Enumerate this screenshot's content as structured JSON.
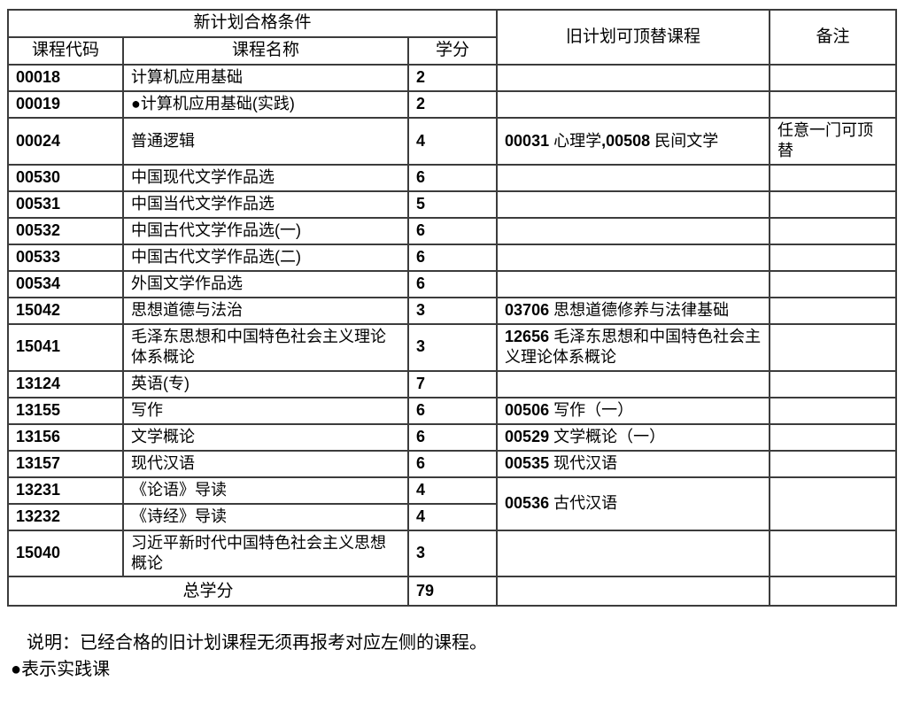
{
  "table": {
    "header": {
      "new_plan_title": "新计划合格条件",
      "col_code": "课程代码",
      "col_name": "课程名称",
      "col_credits": "学分",
      "old_plan_title": "旧计划可顶替课程",
      "remark_title": "备注"
    },
    "rows": [
      {
        "code": "00018",
        "name": "计算机应用基础",
        "credits": "2",
        "old_plan": [],
        "remark": ""
      },
      {
        "code": "00019",
        "name": "●计算机应用基础(实践)",
        "credits": "2",
        "old_plan": [],
        "remark": ""
      },
      {
        "code": "00024",
        "name": "普通逻辑",
        "credits": "4",
        "old_plan": [
          {
            "code": "00031",
            "name": "心理学"
          },
          {
            "code": "00508",
            "name": "民间文学"
          }
        ],
        "separator": ",",
        "remark": "任意一门可顶替"
      },
      {
        "code": "00530",
        "name": "中国现代文学作品选",
        "credits": "6",
        "old_plan": [],
        "remark": ""
      },
      {
        "code": "00531",
        "name": "中国当代文学作品选",
        "credits": "5",
        "old_plan": [],
        "remark": ""
      },
      {
        "code": "00532",
        "name": "中国古代文学作品选(一)",
        "credits": "6",
        "old_plan": [],
        "remark": ""
      },
      {
        "code": "00533",
        "name": "中国古代文学作品选(二)",
        "credits": "6",
        "old_plan": [],
        "remark": ""
      },
      {
        "code": "00534",
        "name": "外国文学作品选",
        "credits": "6",
        "old_plan": [],
        "remark": ""
      },
      {
        "code": "15042",
        "name": "思想道德与法治",
        "credits": "3",
        "old_plan": [
          {
            "code": "03706",
            "name": "思想道德修养与法律基础"
          }
        ],
        "remark": ""
      },
      {
        "code": "15041",
        "name": "毛泽东思想和中国特色社会主义理论体系概论",
        "credits": "3",
        "old_plan": [
          {
            "code": "12656",
            "name": "毛泽东思想和中国特色社会主义理论体系概论"
          }
        ],
        "remark": ""
      },
      {
        "code": "13124",
        "name": "英语(专)",
        "credits": "7",
        "old_plan": [],
        "remark": ""
      },
      {
        "code": "13155",
        "name": "写作",
        "credits": "6",
        "old_plan": [
          {
            "code": "00506",
            "name": "写作（一）"
          }
        ],
        "remark": ""
      },
      {
        "code": "13156",
        "name": "文学概论",
        "credits": "6",
        "old_plan": [
          {
            "code": "00529",
            "name": "文学概论（一）"
          }
        ],
        "remark": ""
      },
      {
        "code": "13157",
        "name": "现代汉语",
        "credits": "6",
        "old_plan": [
          {
            "code": "00535",
            "name": "现代汉语"
          }
        ],
        "remark": ""
      },
      {
        "code": "13231",
        "name": "《论语》导读",
        "credits": "4",
        "old_plan": [
          {
            "code": "00536",
            "name": "古代汉语"
          }
        ],
        "remark": "",
        "old_plan_rowspan": 2,
        "remark_rowspan": 2
      },
      {
        "code": "13232",
        "name": "《诗经》导读",
        "credits": "4",
        "old_plan_merged": true,
        "remark_merged": true
      },
      {
        "code": "15040",
        "name": "习近平新时代中国特色社会主义思想概论",
        "credits": "3",
        "old_plan": [],
        "remark": ""
      }
    ],
    "total_row": {
      "label": "总学分",
      "credits": "79",
      "old_plan": "",
      "remark": ""
    }
  },
  "footer": {
    "line1": "说明：已经合格的旧计划课程无须再报考对应左侧的课程。",
    "line2": "●表示实践课"
  }
}
